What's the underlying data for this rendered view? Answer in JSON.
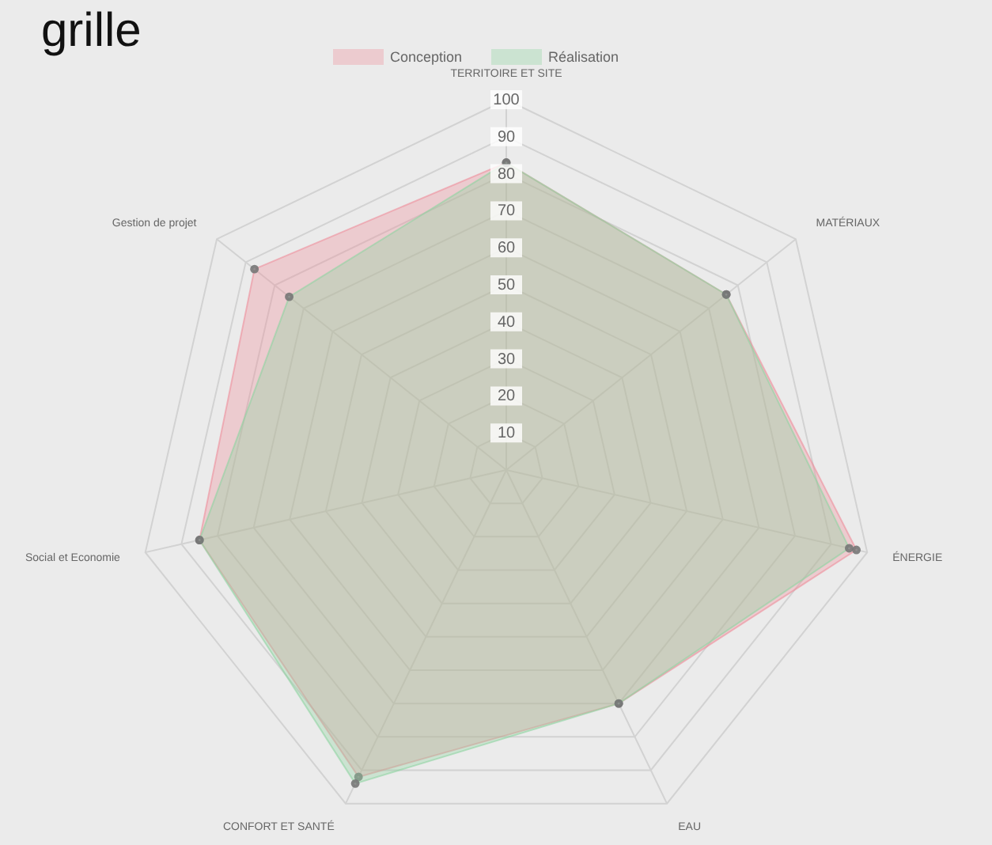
{
  "chart_data": {
    "type": "radar",
    "title": "grille",
    "categories": [
      "TERRITOIRE ET SITE",
      "MATÉRIAUX",
      "ÉNERGIE",
      "EAU",
      "CONFORT ET SANTÉ",
      "Social et Economie",
      "Gestion de projet"
    ],
    "ylim": [
      0,
      100
    ],
    "yticks": [
      10,
      20,
      30,
      40,
      50,
      60,
      70,
      80,
      90,
      100
    ],
    "grid": true,
    "legend": "top",
    "marker": "circle",
    "series": [
      {
        "name": "Conception",
        "color": "#ee8e9b",
        "values": [
          83,
          76,
          97,
          70,
          92,
          85,
          87
        ]
      },
      {
        "name": "Réalisation",
        "color": "#8fd3a1",
        "values": [
          83,
          76,
          95,
          70,
          94,
          85,
          75
        ]
      }
    ]
  }
}
